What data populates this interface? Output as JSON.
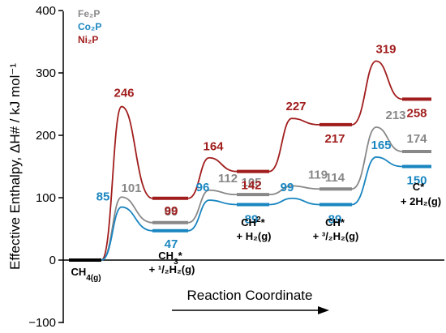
{
  "chart_data": {
    "type": "line",
    "ylabel": "Effective Enthalpy, ΔH# / kJ mol⁻¹",
    "xlabel": "Reaction Coordinate",
    "ylim": [
      -100,
      400
    ],
    "y_ticks": [
      -100,
      0,
      100,
      200,
      300,
      400
    ],
    "y_tick_labels": [
      "−100",
      "0",
      "100",
      "200",
      "300",
      "400"
    ],
    "grid": false,
    "legend_position": "top-left",
    "steps": [
      {
        "main": "CH",
        "sub": "4(g)",
        "tail": ""
      },
      {
        "main": "CH",
        "sub": "",
        "sup": "3",
        "tail": "*",
        "line2": "+ ¹/₂H₂(g)"
      },
      {
        "main": "CH",
        "sup": "2",
        "tail": "*",
        "line2": "+ H₂(g)"
      },
      {
        "main": "CH*",
        "line2": "+ ³/₂H₂(g)"
      },
      {
        "main": "C*",
        "line2": "+ 2H₂(g)"
      }
    ],
    "series": [
      {
        "name": "Fe₂P",
        "color": "#888888",
        "intermediates": [
          0,
          60,
          105,
          114,
          174
        ],
        "transition_states": [
          101,
          112,
          119,
          213
        ],
        "intermediate_labels": [
          "60",
          "105",
          "114",
          "174"
        ],
        "ts_labels": [
          "101",
          "112",
          "119",
          "213"
        ]
      },
      {
        "name": "Co₂P",
        "color": "#1a86c0",
        "intermediates": [
          0,
          47,
          89,
          89,
          150
        ],
        "transition_states": [
          85,
          96,
          99,
          165
        ],
        "intermediate_labels": [
          "47",
          "89",
          "89",
          "150"
        ],
        "ts_labels": [
          "85",
          "96",
          "99",
          "165"
        ]
      },
      {
        "name": "Ni₂P",
        "color": "#a11d1d",
        "intermediates": [
          0,
          99,
          142,
          217,
          258
        ],
        "transition_states": [
          246,
          164,
          227,
          319
        ],
        "intermediate_labels": [
          "99",
          "142",
          "217",
          "258"
        ],
        "ts_labels": [
          "246",
          "164",
          "227",
          "319"
        ]
      }
    ]
  }
}
